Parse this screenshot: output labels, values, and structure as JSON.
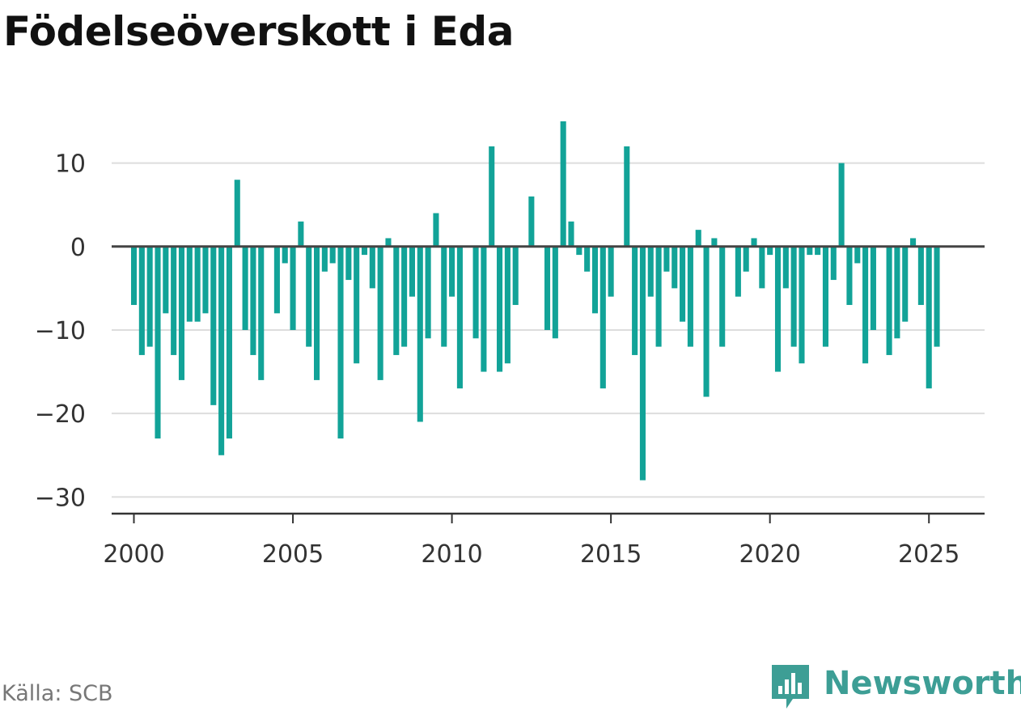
{
  "page": {
    "title": "Födelseöverskott i Eda",
    "source": "Källa: SCB",
    "brand": "Newsworthy"
  },
  "colors": {
    "bar": "#12a398",
    "baseline": "#444444",
    "grid": "#dddddd",
    "axis": "#333333",
    "brand": "#3d9e95"
  },
  "chart_data": {
    "type": "bar",
    "title": "Födelseöverskott i Eda",
    "xlabel": "",
    "ylabel": "",
    "x_start": 2000.0,
    "x_step": 0.25,
    "xlim": [
      1999.3,
      2026.75
    ],
    "ylim": [
      -32,
      15
    ],
    "yticks": [
      10,
      0,
      -10,
      -20,
      -30
    ],
    "ytick_labels": [
      "10",
      "0",
      "−10",
      "−20",
      "−30"
    ],
    "xticks": [
      2000,
      2005,
      2010,
      2015,
      2020,
      2025
    ],
    "xtick_labels": [
      "2000",
      "2005",
      "2010",
      "2015",
      "2020",
      "2025"
    ],
    "grid": true,
    "values": [
      -7,
      -13,
      -12,
      -23,
      -8,
      -13,
      -16,
      -9,
      -9,
      -8,
      -19,
      -25,
      -23,
      8,
      -10,
      -13,
      -16,
      0,
      -8,
      -2,
      -10,
      3,
      -12,
      -16,
      -3,
      -2,
      -23,
      -4,
      -14,
      -1,
      -5,
      -16,
      1,
      -13,
      -12,
      -6,
      -21,
      -11,
      4,
      -12,
      -6,
      -17,
      0,
      -11,
      -15,
      12,
      -15,
      -14,
      -7,
      0,
      6,
      0,
      -10,
      -11,
      15,
      3,
      -1,
      -3,
      -8,
      -17,
      -6,
      0,
      12,
      -13,
      -28,
      -6,
      -12,
      -3,
      -5,
      -9,
      -12,
      2,
      -18,
      1,
      -12,
      0,
      -6,
      -3,
      1,
      -5,
      -1,
      -15,
      -5,
      -12,
      -14,
      -1,
      -1,
      -12,
      -4,
      10,
      -7,
      -2,
      -14,
      -10,
      0,
      -13,
      -11,
      -9,
      1,
      -7,
      -17,
      -12
    ]
  }
}
